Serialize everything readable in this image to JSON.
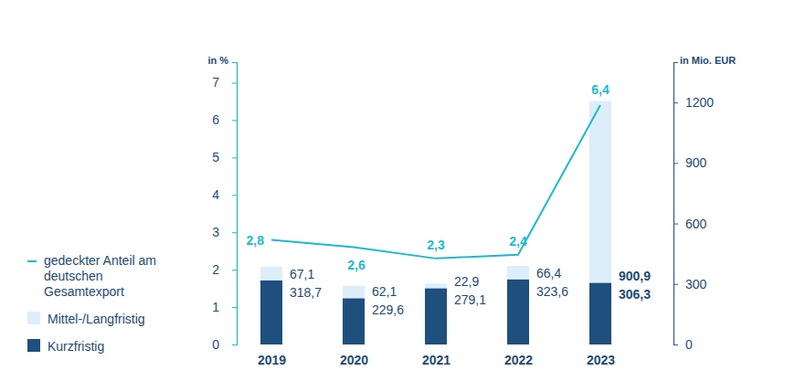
{
  "chart_data": {
    "type": "bar",
    "stacked": true,
    "data_labels": true,
    "legend": "left",
    "ylabel": "in %",
    "y2label": "in Mio. EUR",
    "categories": [
      "2019",
      "2020",
      "2021",
      "2022",
      "2023"
    ],
    "ylim": [
      0,
      7.55
    ],
    "yticks": [
      0,
      1,
      2,
      3,
      4,
      5,
      6,
      7
    ],
    "y2lim": [
      0,
      1400
    ],
    "y2ticks": [
      0,
      300,
      600,
      900,
      1200
    ],
    "series": [
      {
        "name": "Kurzfristig",
        "type": "bar",
        "axis": "y2",
        "color": "#1e4f7d",
        "values": [
          318.7,
          229.6,
          279.1,
          323.6,
          306.3
        ],
        "value_labels": [
          "318,7",
          "229,6",
          "279,1",
          "323,6",
          "306,3"
        ]
      },
      {
        "name": "Mittel-/Langfristig",
        "type": "bar",
        "axis": "y2",
        "color": "#ddeefb",
        "values": [
          67.1,
          62.1,
          22.9,
          66.4,
          900.9
        ],
        "value_labels": [
          "67,1",
          "62,1",
          "22,9",
          "66,4",
          "900,9"
        ]
      },
      {
        "name": "gedeckter Anteil am deutschen Gesamtexport",
        "type": "line",
        "axis": "y",
        "color": "#1fb8cf",
        "marker": "none",
        "line_style": "solid",
        "values": [
          2.8,
          2.6,
          2.3,
          2.4,
          6.4
        ],
        "value_labels": [
          "2,8",
          "2,6",
          "2,3",
          "2,4",
          "6,4"
        ]
      }
    ]
  }
}
